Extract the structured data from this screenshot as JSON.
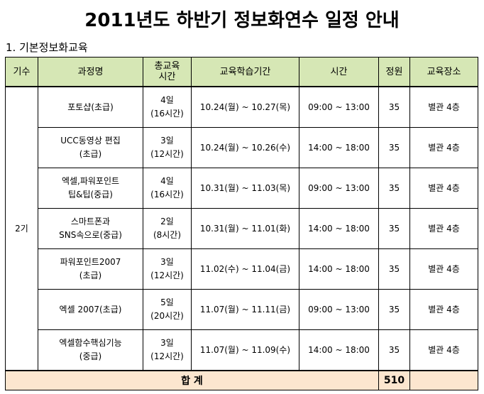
{
  "title": "2011년도 하반기 정보화연수 일정 안내",
  "section": "1.  기본정보화교육",
  "headers": {
    "term": "기수",
    "course": "과정명",
    "hours": "총교육시간",
    "period": "교육학습기간",
    "time": "시간",
    "capacity": "정원",
    "place": "교육장소"
  },
  "group_label": "2기",
  "rows": [
    {
      "course": "포토샵(초급)",
      "days": "4일",
      "hours": "(16시간)",
      "period": "10.24(월) ~ 10.27(목)",
      "time": "09:00 ~ 13:00",
      "capacity": "35",
      "place": "별관 4층"
    },
    {
      "course": "UCC동영상 편집",
      "course2": "(초급)",
      "days": "3일",
      "hours": "(12시간)",
      "period": "10.24(월) ~ 10.26(수)",
      "time": "14:00 ~ 18:00",
      "capacity": "35",
      "place": "별관 4층"
    },
    {
      "course": "엑셀,파워포인트",
      "course2": "팁&팁(중급)",
      "days": "4일",
      "hours": "(16시간)",
      "period": "10.31(월) ~ 11.03(목)",
      "time": "09:00  ~ 13:00",
      "capacity": "35",
      "place": "별관 4층"
    },
    {
      "course": "스마트폰과",
      "course2": "SNS속으로(중급)",
      "days": "2일",
      "hours": "(8시간)",
      "period": "10.31(월) ~ 11.01(화)",
      "time": "14:00 ~ 18:00",
      "capacity": "35",
      "place": "별관 4층"
    },
    {
      "course": "파워포인트2007",
      "course2": "(초급)",
      "days": "3일",
      "hours": "(12시간)",
      "period": "11.02(수) ~ 11.04(금)",
      "time": "14:00 ~ 18:00",
      "capacity": "35",
      "place": "별관 4층"
    },
    {
      "course": "엑셀 2007(초급)",
      "days": "5일",
      "hours": "(20시간)",
      "period": "11.07(월) ~ 11.11(금)",
      "time": "09:00  ~ 13:00",
      "capacity": "35",
      "place": "별관 4층"
    },
    {
      "course": "엑셀함수핵심기능",
      "course2": "(중급)",
      "days": "3일",
      "hours": "(12시간)",
      "period": "11.07(월) ~ 11.09(수)",
      "time": "14:00 ~ 18:00",
      "capacity": "35",
      "place": "별관 4층"
    }
  ],
  "total": {
    "label": "합  계",
    "capacity": "510"
  }
}
